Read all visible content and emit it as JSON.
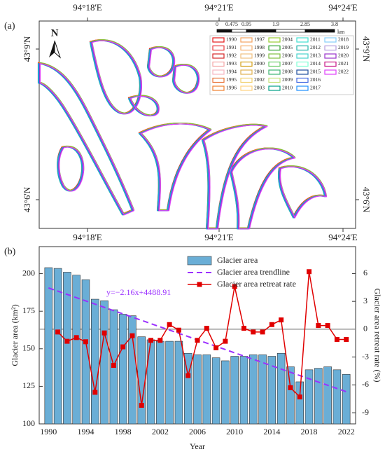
{
  "map": {
    "label": "(a)",
    "north": "N",
    "top_ticks": [
      "94°18'E",
      "94°21'E",
      "94°24'E"
    ],
    "bottom_ticks": [
      "94°18'E",
      "94°21'E",
      "94°24'E"
    ],
    "left_ticks": [
      "43°9'N",
      "43°6'N"
    ],
    "right_ticks": [
      "43°9'N",
      "43°6'N"
    ],
    "scale": {
      "ticks": [
        0,
        0.475,
        0.95,
        1.9,
        2.85,
        3.8
      ],
      "unit": "km"
    },
    "legend": [
      {
        "year": "1990",
        "color": "#e41a1c"
      },
      {
        "year": "1991",
        "color": "#e8383d"
      },
      {
        "year": "1992",
        "color": "#d62728"
      },
      {
        "year": "1993",
        "color": "#f4a6a6"
      },
      {
        "year": "1994",
        "color": "#f7b6c2"
      },
      {
        "year": "1995",
        "color": "#e8743b"
      },
      {
        "year": "1996",
        "color": "#f08030"
      },
      {
        "year": "1997",
        "color": "#f4a460"
      },
      {
        "year": "1998",
        "color": "#f5b070"
      },
      {
        "year": "1999",
        "color": "#f0c080"
      },
      {
        "year": "2000",
        "color": "#d4a017"
      },
      {
        "year": "2001",
        "color": "#e0b050"
      },
      {
        "year": "2002",
        "color": "#f0d070"
      },
      {
        "year": "2003",
        "color": "#ffd27f"
      },
      {
        "year": "2004",
        "color": "#9acd32"
      },
      {
        "year": "2005",
        "color": "#2ca02c"
      },
      {
        "year": "2006",
        "color": "#7fbf3f"
      },
      {
        "year": "2007",
        "color": "#66cc66"
      },
      {
        "year": "2008",
        "color": "#3cb371"
      },
      {
        "year": "2009",
        "color": "#c5e17a"
      },
      {
        "year": "2010",
        "color": "#00a087"
      },
      {
        "year": "2011",
        "color": "#40e0d0"
      },
      {
        "year": "2012",
        "color": "#20b2aa"
      },
      {
        "year": "2013",
        "color": "#48d1cc"
      },
      {
        "year": "2014",
        "color": "#7fffd4"
      },
      {
        "year": "2015",
        "color": "#1f4e9c"
      },
      {
        "year": "2016",
        "color": "#4169e1"
      },
      {
        "year": "2017",
        "color": "#1e90ff"
      },
      {
        "year": "2018",
        "color": "#87cefa"
      },
      {
        "year": "2019",
        "color": "#b39ddb"
      },
      {
        "year": "2020",
        "color": "#9932cc"
      },
      {
        "year": "2021",
        "color": "#c71585"
      },
      {
        "year": "2022",
        "color": "#e040fb"
      }
    ]
  },
  "chart_data": {
    "type": "bar",
    "label": "(b)",
    "x": [
      1990,
      1991,
      1992,
      1993,
      1994,
      1995,
      1996,
      1997,
      1998,
      1999,
      2000,
      2001,
      2002,
      2003,
      2004,
      2005,
      2006,
      2007,
      2008,
      2009,
      2010,
      2011,
      2012,
      2013,
      2014,
      2015,
      2016,
      2017,
      2018,
      2019,
      2020,
      2021,
      2022
    ],
    "series": [
      {
        "name": "Glacier area",
        "type": "bar",
        "color": "#6aaed6",
        "values": [
          204,
          203.5,
          201,
          199,
          196,
          183,
          182,
          176,
          173,
          172,
          158,
          156,
          155,
          155,
          155,
          147,
          146,
          146,
          144,
          142,
          145,
          145,
          146,
          146,
          145,
          147,
          138,
          128,
          136,
          137,
          138,
          136,
          133
        ]
      },
      {
        "name": "Glacier area trendline",
        "type": "line",
        "dashed": true,
        "color": "#9b30ff",
        "x": [
          1990,
          2022
        ],
        "values": [
          190.51,
          121.39
        ]
      },
      {
        "name": "Glacier area retreat rate",
        "type": "line",
        "markers": true,
        "color": "#e00000",
        "axis": "y2",
        "values": [
          null,
          -0.3,
          -1.3,
          -0.9,
          -1.35,
          -6.8,
          -0.4,
          -3.9,
          -1.9,
          -0.7,
          -8.2,
          -1.2,
          -1.2,
          0.5,
          -0.1,
          -5.0,
          -1.2,
          0.1,
          -2.0,
          -1.3,
          4.6,
          0.1,
          -0.3,
          -0.3,
          0.5,
          1.0,
          -6.3,
          -7.3,
          6.2,
          0.4,
          0.4,
          -1.1,
          -1.1
        ]
      }
    ],
    "annotation": "y=−2.16x+4488.91",
    "xlabel": "Year",
    "ylabel": "Glacier area (km²)",
    "y2label": "Glacier area retreat rate (%)",
    "xlim": [
      1989,
      2023
    ],
    "xticks": [
      1990,
      1994,
      1998,
      2002,
      2006,
      2010,
      2014,
      2018,
      2022
    ],
    "ylim": [
      100,
      218
    ],
    "yticks": [
      100,
      125,
      150,
      175,
      200
    ],
    "y2lim": [
      -10.2,
      8.9
    ],
    "y2ticks": [
      -9,
      -6,
      -3,
      0,
      3,
      6
    ],
    "zero_line": true,
    "legend": "top-center"
  }
}
